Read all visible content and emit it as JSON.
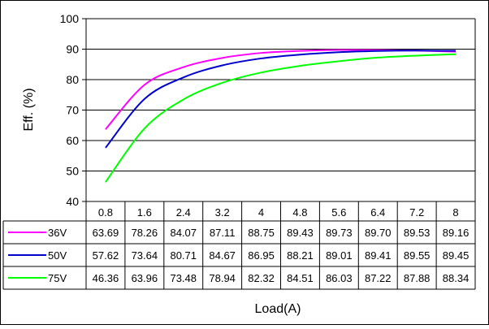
{
  "chart_data": {
    "type": "line",
    "xlabel": "Load(A)",
    "ylabel": "Eff. (%)",
    "categories": [
      "0.8",
      "1.6",
      "2.4",
      "3.2",
      "4",
      "4.8",
      "5.6",
      "6.4",
      "7.2",
      "8"
    ],
    "x": [
      0.8,
      1.6,
      2.4,
      3.2,
      4,
      4.8,
      5.6,
      6.4,
      7.2,
      8
    ],
    "ylim": [
      40,
      100
    ],
    "yticks": [
      "40",
      "50",
      "60",
      "70",
      "80",
      "90",
      "100"
    ],
    "grid": true,
    "legend": "data-table",
    "series": [
      {
        "name": "36V",
        "color": "#ff00ff",
        "values": [
          63.69,
          78.26,
          84.07,
          87.11,
          88.75,
          89.43,
          89.73,
          89.7,
          89.53,
          89.16
        ],
        "labels": [
          "63.69",
          "78.26",
          "84.07",
          "87.11",
          "88.75",
          "89.43",
          "89.73",
          "89.70",
          "89.53",
          "89.16"
        ]
      },
      {
        "name": "50V",
        "color": "#0000cc",
        "values": [
          57.62,
          73.64,
          80.71,
          84.67,
          86.95,
          88.21,
          89.01,
          89.41,
          89.55,
          89.45
        ],
        "labels": [
          "57.62",
          "73.64",
          "80.71",
          "84.67",
          "86.95",
          "88.21",
          "89.01",
          "89.41",
          "89.55",
          "89.45"
        ]
      },
      {
        "name": "75V",
        "color": "#00ff00",
        "values": [
          46.36,
          63.96,
          73.48,
          78.94,
          82.32,
          84.51,
          86.03,
          87.22,
          87.88,
          88.34
        ],
        "labels": [
          "46.36",
          "63.96",
          "73.48",
          "78.94",
          "82.32",
          "84.51",
          "86.03",
          "87.22",
          "87.88",
          "88.34"
        ]
      }
    ]
  }
}
